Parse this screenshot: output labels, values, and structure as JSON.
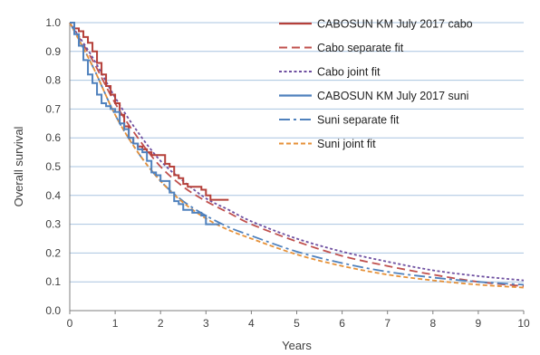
{
  "chart_data": {
    "type": "line",
    "title": "",
    "xlabel": "Years",
    "ylabel": "Overall survival",
    "xlim": [
      0,
      10
    ],
    "ylim": [
      0,
      1.0
    ],
    "x_ticks": [
      "0",
      "1",
      "2",
      "3",
      "4",
      "5",
      "6",
      "7",
      "8",
      "9",
      "10"
    ],
    "y_ticks": [
      "0.0",
      "0.1",
      "0.2",
      "0.3",
      "0.4",
      "0.5",
      "0.6",
      "0.7",
      "0.8",
      "0.9",
      "1.0"
    ],
    "grid": "horizontal",
    "legend_position": "top-right",
    "series": [
      {
        "name": "CABOSUN KM July 2017 cabo",
        "style": "step",
        "color": "#b5403a",
        "dash": "solid",
        "x": [
          0,
          0.1,
          0.2,
          0.3,
          0.4,
          0.5,
          0.6,
          0.7,
          0.8,
          0.9,
          1.0,
          1.1,
          1.2,
          1.3,
          1.4,
          1.5,
          1.6,
          1.7,
          1.8,
          1.9,
          2.0,
          2.1,
          2.2,
          2.3,
          2.4,
          2.5,
          2.6,
          2.7,
          2.8,
          2.9,
          3.0,
          3.1,
          3.2,
          3.3,
          3.4,
          3.5
        ],
        "y": [
          1.0,
          0.98,
          0.97,
          0.95,
          0.93,
          0.9,
          0.86,
          0.82,
          0.78,
          0.75,
          0.72,
          0.68,
          0.64,
          0.6,
          0.58,
          0.57,
          0.56,
          0.55,
          0.54,
          0.54,
          0.54,
          0.51,
          0.5,
          0.47,
          0.46,
          0.44,
          0.43,
          0.43,
          0.43,
          0.42,
          0.4,
          0.385,
          0.385,
          0.385,
          0.385,
          0.385
        ]
      },
      {
        "name": "Cabo separate fit",
        "style": "curve",
        "color": "#c0504d",
        "dash": "dashed",
        "x": [
          0,
          0.5,
          1.0,
          1.5,
          2.0,
          2.5,
          3.0,
          3.5,
          4.0,
          5.0,
          6.0,
          7.0,
          8.0,
          9.0,
          10.0
        ],
        "y": [
          1.0,
          0.87,
          0.72,
          0.6,
          0.5,
          0.43,
          0.38,
          0.34,
          0.3,
          0.24,
          0.19,
          0.155,
          0.125,
          0.1,
          0.085
        ]
      },
      {
        "name": "Cabo joint fit",
        "style": "curve",
        "color": "#6e4fa0",
        "dash": "dotted",
        "x": [
          0,
          0.5,
          1.0,
          1.5,
          2.0,
          2.5,
          3.0,
          3.5,
          4.0,
          5.0,
          6.0,
          7.0,
          8.0,
          9.0,
          10.0
        ],
        "y": [
          1.0,
          0.88,
          0.74,
          0.62,
          0.52,
          0.45,
          0.39,
          0.35,
          0.31,
          0.25,
          0.205,
          0.17,
          0.14,
          0.12,
          0.105
        ]
      },
      {
        "name": "CABOSUN KM July 2017  suni",
        "style": "step",
        "color": "#4f81bd",
        "dash": "solid",
        "x": [
          0,
          0.1,
          0.2,
          0.3,
          0.4,
          0.5,
          0.6,
          0.7,
          0.8,
          0.9,
          1.0,
          1.1,
          1.2,
          1.3,
          1.4,
          1.5,
          1.6,
          1.7,
          1.8,
          1.9,
          2.0,
          2.1,
          2.2,
          2.3,
          2.4,
          2.5,
          2.6,
          2.7,
          2.8,
          2.9,
          3.0,
          3.1,
          3.2,
          3.3
        ],
        "y": [
          1.0,
          0.96,
          0.92,
          0.87,
          0.82,
          0.79,
          0.75,
          0.72,
          0.71,
          0.7,
          0.69,
          0.65,
          0.63,
          0.6,
          0.58,
          0.56,
          0.55,
          0.52,
          0.48,
          0.47,
          0.45,
          0.45,
          0.41,
          0.38,
          0.37,
          0.35,
          0.35,
          0.34,
          0.34,
          0.33,
          0.3,
          0.3,
          0.3,
          0.3
        ]
      },
      {
        "name": "Suni separate fit",
        "style": "curve",
        "color": "#4f81bd",
        "dash": "dashdot",
        "x": [
          0,
          0.5,
          1.0,
          1.5,
          2.0,
          2.5,
          3.0,
          3.5,
          4.0,
          5.0,
          6.0,
          7.0,
          8.0,
          9.0,
          10.0
        ],
        "y": [
          1.0,
          0.85,
          0.68,
          0.55,
          0.45,
          0.38,
          0.33,
          0.29,
          0.26,
          0.205,
          0.165,
          0.135,
          0.115,
          0.1,
          0.09
        ]
      },
      {
        "name": "Suni joint fit",
        "style": "curve",
        "color": "#e69138",
        "dash": "dashed-short",
        "x": [
          0,
          0.5,
          1.0,
          1.5,
          2.0,
          2.5,
          3.0,
          3.5,
          4.0,
          5.0,
          6.0,
          7.0,
          8.0,
          9.0,
          10.0
        ],
        "y": [
          1.0,
          0.85,
          0.68,
          0.55,
          0.45,
          0.375,
          0.32,
          0.28,
          0.25,
          0.195,
          0.155,
          0.125,
          0.105,
          0.09,
          0.08
        ]
      }
    ]
  }
}
